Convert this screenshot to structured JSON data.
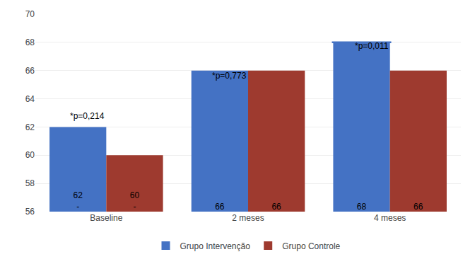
{
  "chart_data": {
    "type": "bar",
    "categories": [
      "Baseline",
      "2 meses",
      "4 meses"
    ],
    "series": [
      {
        "name": "Grupo Intervenção",
        "color": "#4472C4",
        "values": [
          62,
          66,
          68
        ],
        "value_labels": [
          "62\n-",
          "66",
          "68"
        ]
      },
      {
        "name": "Grupo Controle",
        "color": "#9E3A2F",
        "values": [
          60,
          66,
          66
        ],
        "value_labels": [
          "60\n-",
          "66",
          "66"
        ]
      }
    ],
    "ylim": [
      56,
      70
    ],
    "yticks": [
      56,
      58,
      60,
      62,
      64,
      66,
      68,
      70
    ],
    "grid": true,
    "data_labels": true,
    "legend": "bottom",
    "annotations": [
      {
        "text": "*p=0,214",
        "x": "Baseline",
        "y": 62.3
      },
      {
        "text": "*p=0,773",
        "x": "2 meses",
        "y": 65.2
      },
      {
        "text": "*p=0,011",
        "x": "4 meses",
        "y": 67.3
      }
    ],
    "lines": [
      {
        "category": "4 meses",
        "series": "Grupo Intervenção",
        "y": 68
      }
    ]
  }
}
